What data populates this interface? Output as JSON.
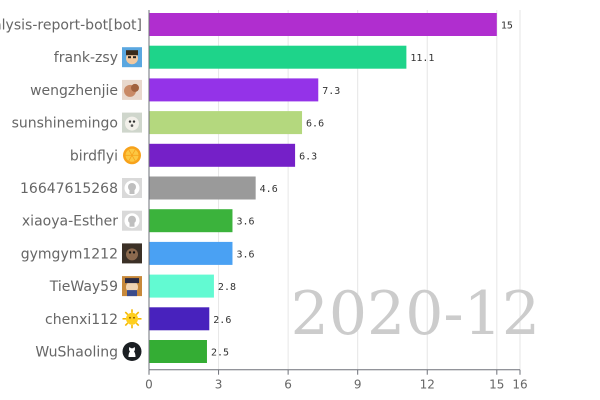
{
  "chart_data": {
    "type": "bar",
    "orientation": "horizontal",
    "watermark": "2020-12",
    "categories": [
      "analysis-report-bot[bot]",
      "frank-zsy",
      "wengzhenjie",
      "sunshinemingo",
      "birdflyi",
      "16647615268",
      "xiaoya-Esther",
      "gymgym1212",
      "TieWay59",
      "chenxi112",
      "WuShaoling"
    ],
    "values": [
      15,
      11.1,
      7.3,
      6.6,
      6.3,
      4.6,
      3.6,
      3.6,
      2.8,
      2.6,
      2.5
    ],
    "value_labels": [
      "15",
      "11.1",
      "7.3",
      "6.6",
      "6.3",
      "4.6",
      "3.6",
      "3.6",
      "2.8",
      "2.6",
      "2.5"
    ],
    "colors": [
      "#b02ecf",
      "#1ed48a",
      "#9433e8",
      "#b4d87e",
      "#7520c8",
      "#9a9a9a",
      "#3bb33c",
      "#4aa1f3",
      "#62fad2",
      "#4822bd",
      "#34ad34"
    ],
    "avatars": [
      "",
      "boy-avatar-icon",
      "dog-avatar-icon",
      "puppy-avatar-icon",
      "orange-avatar-icon",
      "github-default-avatar-icon",
      "github-default-avatar-icon",
      "monkey-avatar-icon",
      "anime-avatar-icon",
      "sun-avatar-icon",
      "github-avatar-icon"
    ],
    "xaxis": {
      "ticks": [
        0,
        3,
        6,
        9,
        12,
        15,
        16
      ],
      "tick_labels": [
        "0",
        "3",
        "6",
        "9",
        "12",
        "15",
        "16"
      ],
      "range": [
        0,
        16
      ]
    },
    "grid": true,
    "xlabel": "",
    "ylabel": "",
    "title": ""
  }
}
